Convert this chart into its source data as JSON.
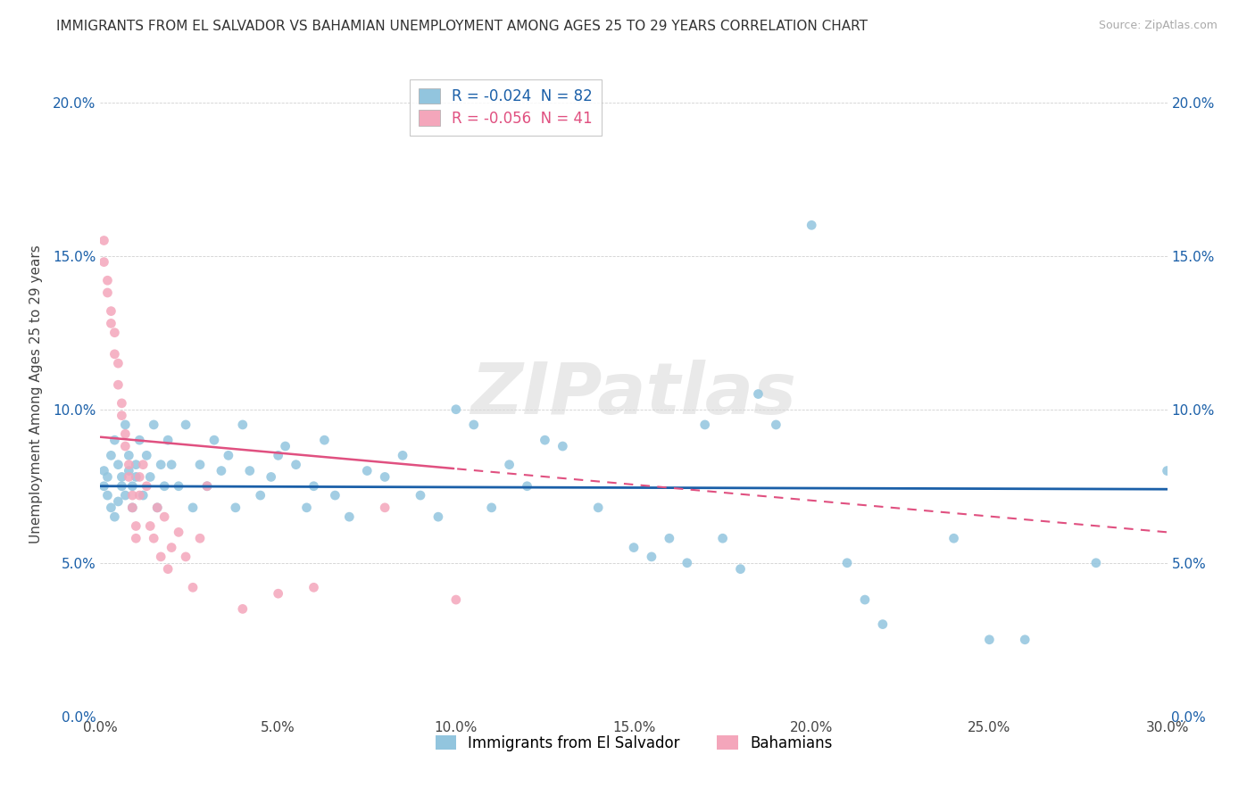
{
  "title": "IMMIGRANTS FROM EL SALVADOR VS BAHAMIAN UNEMPLOYMENT AMONG AGES 25 TO 29 YEARS CORRELATION CHART",
  "source": "Source: ZipAtlas.com",
  "ylabel": "Unemployment Among Ages 25 to 29 years",
  "xlim": [
    0.0,
    0.3
  ],
  "ylim": [
    0.0,
    0.21
  ],
  "xticks": [
    0.0,
    0.05,
    0.1,
    0.15,
    0.2,
    0.25,
    0.3
  ],
  "xtick_labels": [
    "0.0%",
    "5.0%",
    "10.0%",
    "15.0%",
    "20.0%",
    "25.0%",
    "30.0%"
  ],
  "yticks": [
    0.0,
    0.05,
    0.1,
    0.15,
    0.2
  ],
  "ytick_labels": [
    "0.0%",
    "5.0%",
    "10.0%",
    "15.0%",
    "20.0%"
  ],
  "blue_color": "#92c5de",
  "pink_color": "#f4a6bb",
  "trend_blue_color": "#1a5fa8",
  "trend_pink_color": "#e05080",
  "R_blue": -0.024,
  "N_blue": 82,
  "R_pink": -0.056,
  "N_pink": 41,
  "watermark": "ZIPatlas",
  "legend_label_blue": "Immigrants from El Salvador",
  "legend_label_pink": "Bahamians",
  "blue_trend_x0": 0.0,
  "blue_trend_y0": 0.075,
  "blue_trend_x1": 0.3,
  "blue_trend_y1": 0.074,
  "pink_trend_x0": 0.0,
  "pink_trend_y0": 0.091,
  "pink_trend_x1": 0.3,
  "pink_trend_y1": 0.06,
  "blue_scatter_x": [
    0.001,
    0.001,
    0.002,
    0.002,
    0.003,
    0.003,
    0.004,
    0.004,
    0.005,
    0.005,
    0.006,
    0.006,
    0.007,
    0.007,
    0.008,
    0.008,
    0.009,
    0.009,
    0.01,
    0.01,
    0.011,
    0.012,
    0.013,
    0.014,
    0.015,
    0.016,
    0.017,
    0.018,
    0.019,
    0.02,
    0.022,
    0.024,
    0.026,
    0.028,
    0.03,
    0.032,
    0.034,
    0.036,
    0.038,
    0.04,
    0.042,
    0.045,
    0.048,
    0.05,
    0.052,
    0.055,
    0.058,
    0.06,
    0.063,
    0.066,
    0.07,
    0.075,
    0.08,
    0.085,
    0.09,
    0.095,
    0.1,
    0.105,
    0.11,
    0.115,
    0.12,
    0.125,
    0.13,
    0.14,
    0.15,
    0.155,
    0.16,
    0.165,
    0.17,
    0.175,
    0.18,
    0.185,
    0.19,
    0.2,
    0.21,
    0.215,
    0.22,
    0.24,
    0.25,
    0.26,
    0.28,
    0.3
  ],
  "blue_scatter_y": [
    0.075,
    0.08,
    0.072,
    0.078,
    0.068,
    0.085,
    0.065,
    0.09,
    0.07,
    0.082,
    0.075,
    0.078,
    0.095,
    0.072,
    0.08,
    0.085,
    0.068,
    0.075,
    0.082,
    0.078,
    0.09,
    0.072,
    0.085,
    0.078,
    0.095,
    0.068,
    0.082,
    0.075,
    0.09,
    0.082,
    0.075,
    0.095,
    0.068,
    0.082,
    0.075,
    0.09,
    0.08,
    0.085,
    0.068,
    0.095,
    0.08,
    0.072,
    0.078,
    0.085,
    0.088,
    0.082,
    0.068,
    0.075,
    0.09,
    0.072,
    0.065,
    0.08,
    0.078,
    0.085,
    0.072,
    0.065,
    0.1,
    0.095,
    0.068,
    0.082,
    0.075,
    0.09,
    0.088,
    0.068,
    0.055,
    0.052,
    0.058,
    0.05,
    0.095,
    0.058,
    0.048,
    0.105,
    0.095,
    0.16,
    0.05,
    0.038,
    0.03,
    0.058,
    0.025,
    0.025,
    0.05,
    0.08
  ],
  "pink_scatter_x": [
    0.001,
    0.001,
    0.002,
    0.002,
    0.003,
    0.003,
    0.004,
    0.004,
    0.005,
    0.005,
    0.006,
    0.006,
    0.007,
    0.007,
    0.008,
    0.008,
    0.009,
    0.009,
    0.01,
    0.01,
    0.011,
    0.011,
    0.012,
    0.013,
    0.014,
    0.015,
    0.016,
    0.017,
    0.018,
    0.019,
    0.02,
    0.022,
    0.024,
    0.026,
    0.028,
    0.03,
    0.04,
    0.05,
    0.06,
    0.08,
    0.1
  ],
  "pink_scatter_y": [
    0.155,
    0.148,
    0.138,
    0.142,
    0.128,
    0.132,
    0.125,
    0.118,
    0.115,
    0.108,
    0.102,
    0.098,
    0.092,
    0.088,
    0.082,
    0.078,
    0.072,
    0.068,
    0.062,
    0.058,
    0.078,
    0.072,
    0.082,
    0.075,
    0.062,
    0.058,
    0.068,
    0.052,
    0.065,
    0.048,
    0.055,
    0.06,
    0.052,
    0.042,
    0.058,
    0.075,
    0.035,
    0.04,
    0.042,
    0.068,
    0.038
  ]
}
